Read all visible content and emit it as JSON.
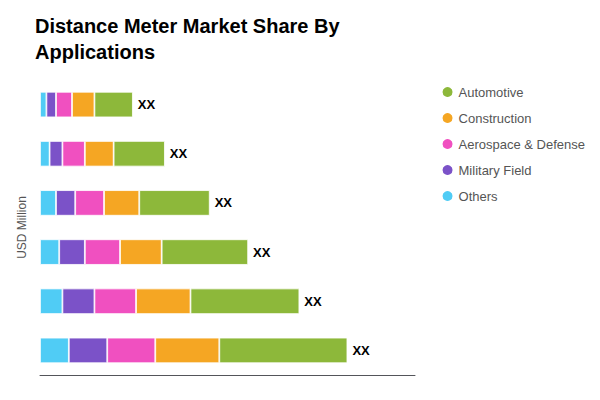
{
  "chart_data": {
    "type": "bar",
    "orientation": "horizontal",
    "stacked": true,
    "title": "Distance Meter Market Share By\nApplications",
    "ylabel": "USD Million",
    "categories": [
      null,
      null,
      null,
      null,
      null,
      null
    ],
    "series": [
      {
        "name": "Others",
        "color": "#50ccf5",
        "values": [
          9,
          7,
          6,
          5,
          3,
          2
        ]
      },
      {
        "name": "Military Field",
        "color": "#7b52c8",
        "values": [
          12,
          10,
          8,
          6,
          4,
          3
        ]
      },
      {
        "name": "Aerospace & Defense",
        "color": "#f050c0",
        "values": [
          15,
          13,
          11,
          9,
          7,
          5
        ]
      },
      {
        "name": "Construction",
        "color": "#f5a623",
        "values": [
          20,
          17,
          13,
          11,
          9,
          7
        ]
      },
      {
        "name": "Automotive",
        "color": "#8db83a",
        "values": [
          40,
          34,
          27,
          22,
          16,
          12
        ]
      }
    ],
    "annotations": [
      "XX",
      "XX",
      "XX",
      "XX",
      "XX",
      "XX"
    ],
    "xlim": [
      0,
      117.12
    ],
    "xticks": [],
    "grid": false,
    "legend": "upper right",
    "tick_labels": false
  }
}
